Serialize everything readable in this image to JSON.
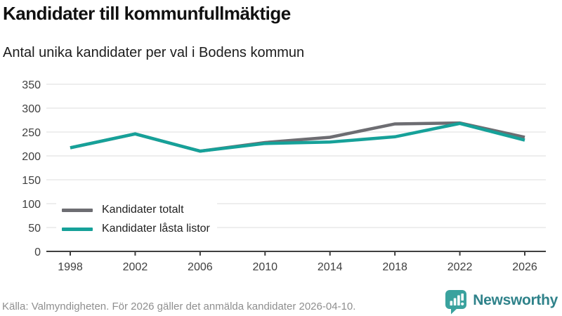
{
  "header": {
    "title": "Kandidater till kommunfullmäktige",
    "subtitle": "Antal unika kandidater per val i Bodens kommun"
  },
  "chart_data": {
    "type": "line",
    "title": "Kandidater till kommunfullmäktige",
    "subtitle": "Antal unika kandidater per val i Bodens kommun",
    "categories": [
      "1998",
      "2002",
      "2006",
      "2010",
      "2014",
      "2018",
      "2022",
      "2026"
    ],
    "series": [
      {
        "name": "Kandidater totalt",
        "color": "#6d6d72",
        "values": [
          217,
          246,
          210,
          228,
          239,
          267,
          269,
          239
        ]
      },
      {
        "name": "Kandidater låsta listor",
        "color": "#16a199",
        "values": [
          217,
          246,
          210,
          226,
          229,
          240,
          268,
          233
        ]
      }
    ],
    "xlabel": "",
    "ylabel": "",
    "ylim": [
      0,
      350
    ],
    "yticks": [
      0,
      50,
      100,
      150,
      200,
      250,
      300,
      350
    ],
    "grid": true,
    "legend_position": "inside-bottom-left"
  },
  "colors": {
    "accent_teal": "#16a199",
    "series_gray": "#6d6d72",
    "gridline": "#e3e3e3",
    "axis": "#3f3f3f",
    "footer_text": "#8f8f8f",
    "brand_teal": "#3aa29e",
    "brand_text": "#2f828a"
  },
  "footer": {
    "source": "Källa: Valmyndigheten. För 2026 gäller det anmälda kandidater 2026-04-10.",
    "brand": "Newsworthy",
    "logo_icon": "bar-chart-speech-bubble-icon"
  }
}
